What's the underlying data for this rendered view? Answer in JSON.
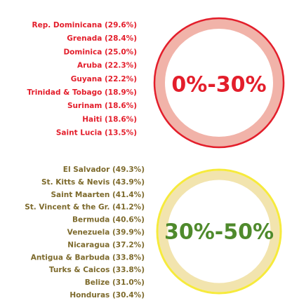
{
  "groups": [
    {
      "label": "0%-30%",
      "items": [
        "Rep. Dominicana (29.6%)",
        "Grenada (28.4%)",
        "Dominica (25.0%)",
        "Aruba (22.3%)",
        "Guyana (22.2%)",
        "Trinidad & Tobago (18.9%)",
        "Surinam (18.6%)",
        "Haiti (18.6%)",
        "Saint Lucia (13.5%)"
      ]
    },
    {
      "label": "30%-50%",
      "items": [
        "El Salvador (49.3%)",
        "St. Kitts & Nevis (43.9%)",
        "Saint Maarten (41.4%)",
        "St. Vincent & the Gr. (41.2%)",
        "Bermuda (40.6%)",
        "Venezuela (39.9%)",
        "Nicaragua (37.2%)",
        "Antigua & Barbuda (33.8%)",
        "Turks & Caicos (33.8%)",
        "Belize (31.0%)",
        "Honduras (30.4%)"
      ]
    }
  ]
}
